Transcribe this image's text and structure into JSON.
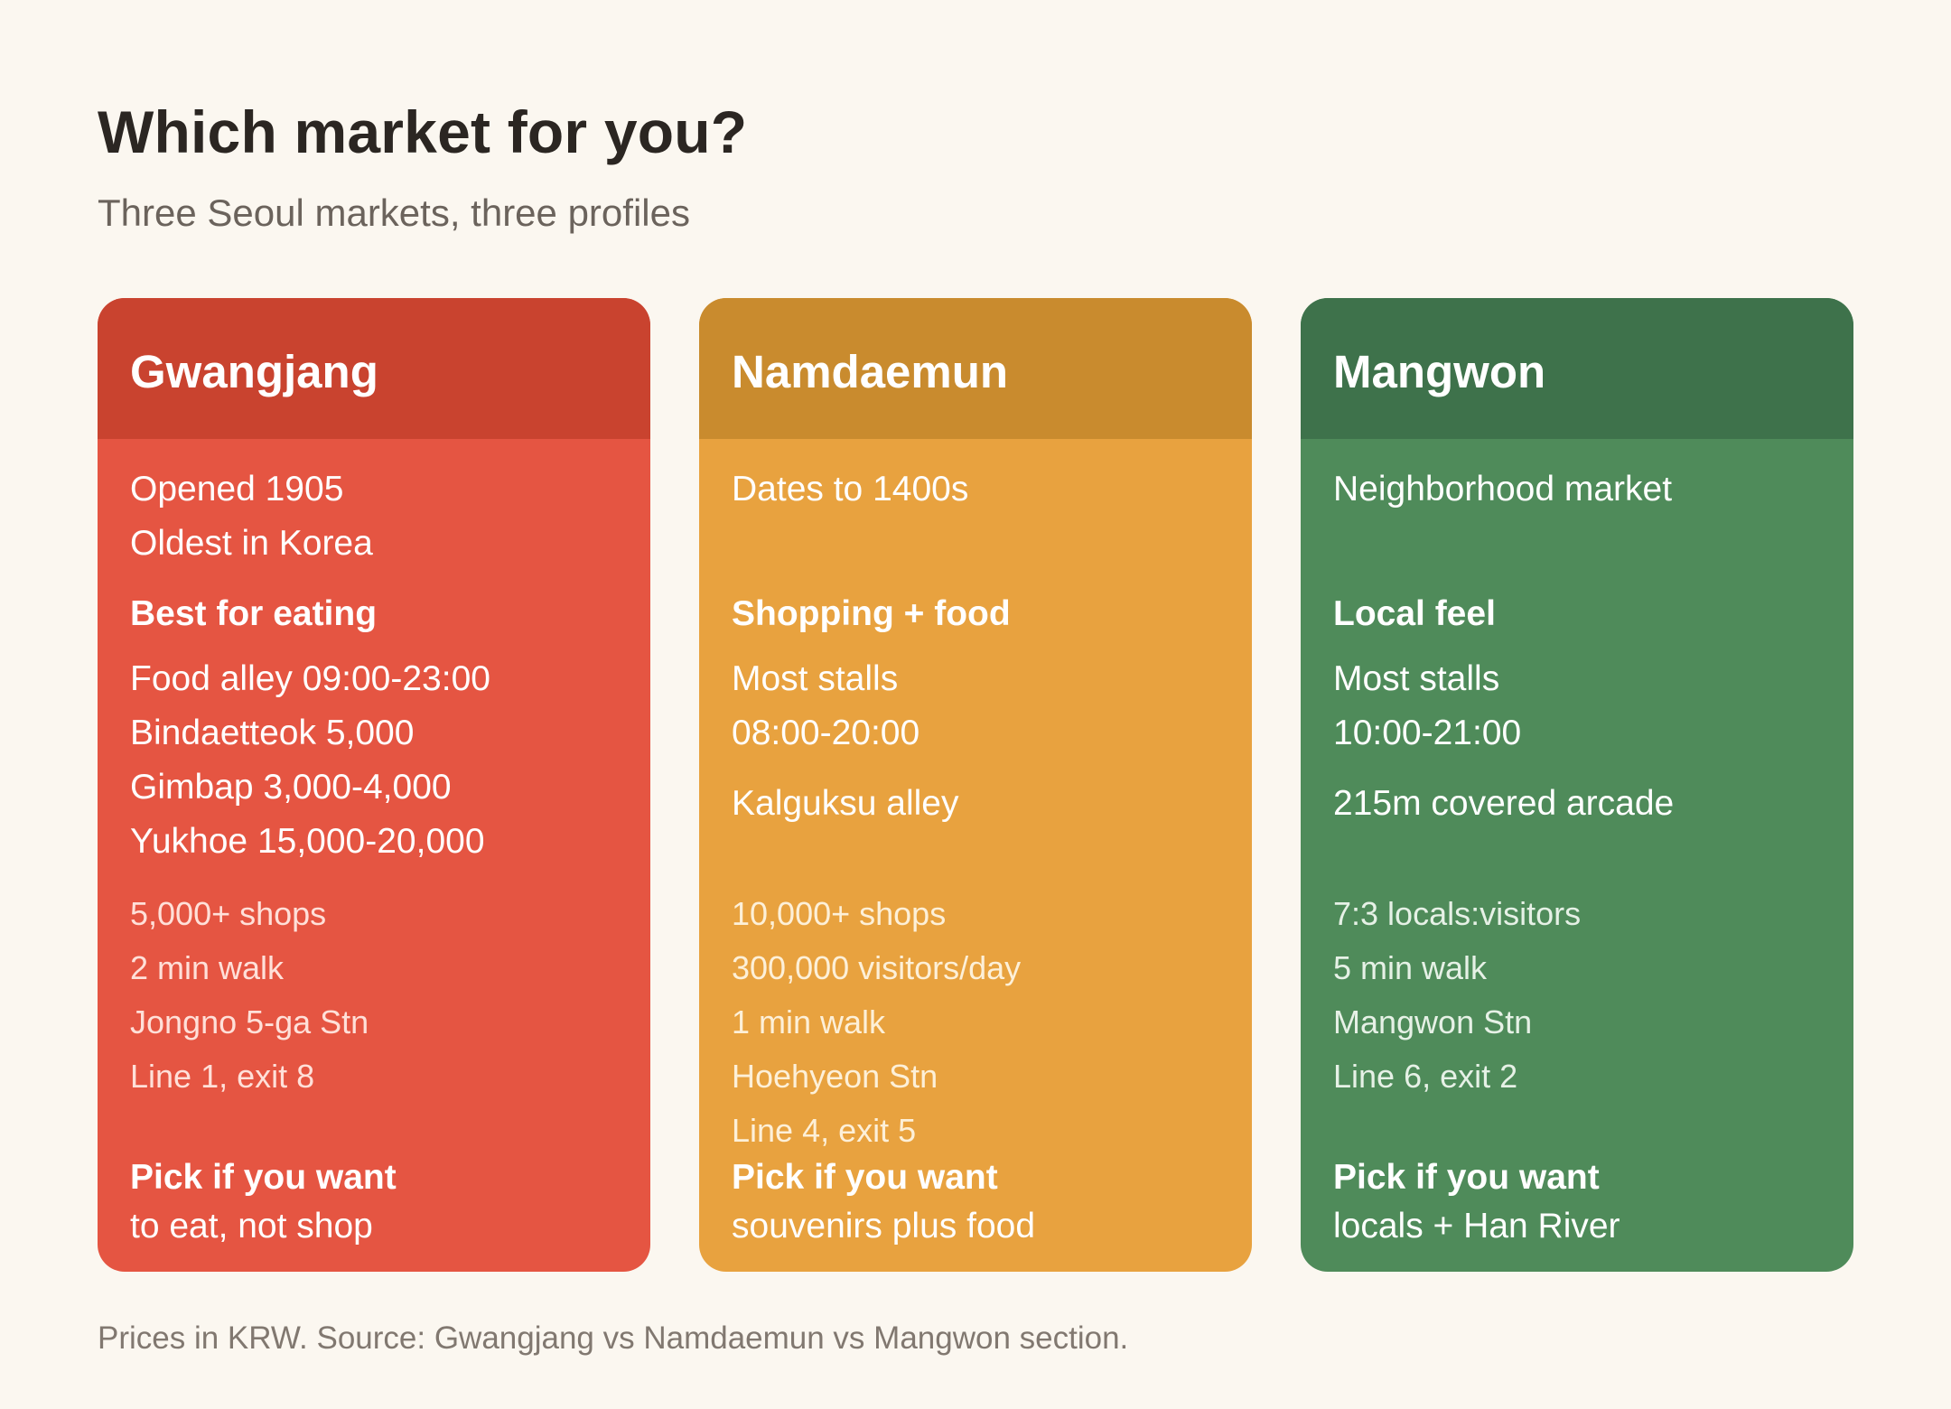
{
  "header": {
    "title": "Which market for you?",
    "subtitle": "Three Seoul markets, three profiles"
  },
  "cards": [
    {
      "name": "Gwangjang",
      "color": "#e55542",
      "header_color": "#c9432f",
      "intro": [
        "Opened 1905",
        "Oldest in Korea"
      ],
      "highlight": "Best for eating",
      "details": [
        "Food alley 09:00-23:00",
        "Bindaetteok 5,000",
        "Gimbap 3,000-4,000",
        "Yukhoe 15,000-20,000"
      ],
      "stats": [
        "5,000+ shops",
        "2 min walk",
        "Jongno 5-ga Stn",
        "Line 1, exit 8"
      ],
      "pick_label": "Pick if you want",
      "pick_value": "to eat, not shop"
    },
    {
      "name": "Namdaemun",
      "color": "#e8a23f",
      "header_color": "#c98b2e",
      "intro": [
        "Dates to 1400s"
      ],
      "highlight": "Shopping + food",
      "details": [
        "Most stalls",
        "08:00-20:00",
        "Kalguksu alley"
      ],
      "stats": [
        "10,000+ shops",
        "300,000 visitors/day",
        "1 min walk",
        "Hoehyeon Stn",
        "Line 4, exit 5"
      ],
      "pick_label": "Pick if you want",
      "pick_value": "souvenirs plus food"
    },
    {
      "name": "Mangwon",
      "color": "#4f8b5a",
      "header_color": "#3e724b",
      "intro": [
        "Neighborhood market"
      ],
      "highlight": "Local feel",
      "details": [
        "Most stalls",
        "10:00-21:00",
        "215m covered arcade"
      ],
      "stats": [
        "7:3 locals:visitors",
        "5 min walk",
        "Mangwon Stn",
        "Line 6, exit 2"
      ],
      "pick_label": "Pick if you want",
      "pick_value": "locals + Han River"
    }
  ],
  "footnote": "Prices in KRW. Source: Gwangjang vs Namdaemun vs Mangwon section."
}
